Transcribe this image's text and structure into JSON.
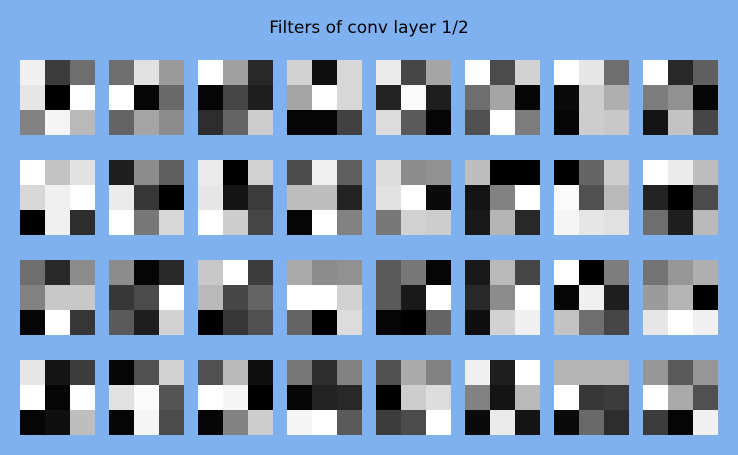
{
  "title": "Filters of conv layer 1/2",
  "background_color": "#7fb0f0",
  "grid": {
    "rows": 4,
    "columns": 8,
    "kernel_size": 3
  },
  "value_scale": "0 = black, 255 = white (grayscale intensity)",
  "filters": [
    [
      [
        240,
        60,
        110
      ],
      [
        230,
        0,
        255
      ],
      [
        130,
        245,
        185
      ]
    ],
    [
      [
        110,
        225,
        155
      ],
      [
        255,
        5,
        105
      ],
      [
        100,
        165,
        140
      ]
    ],
    [
      [
        255,
        160,
        40
      ],
      [
        5,
        70,
        30
      ],
      [
        45,
        100,
        205
      ]
    ],
    [
      [
        210,
        15,
        215
      ],
      [
        165,
        255,
        215
      ],
      [
        5,
        5,
        65
      ]
    ],
    [
      [
        235,
        70,
        165
      ],
      [
        35,
        250,
        30
      ],
      [
        220,
        90,
        5
      ]
    ],
    [
      [
        255,
        75,
        210
      ],
      [
        110,
        165,
        5
      ],
      [
        80,
        255,
        125
      ]
    ],
    [
      [
        255,
        230,
        110
      ],
      [
        10,
        205,
        175
      ],
      [
        5,
        205,
        200
      ]
    ],
    [
      [
        255,
        40,
        95
      ],
      [
        125,
        145,
        5
      ],
      [
        20,
        195,
        70
      ]
    ],
    [
      [
        255,
        195,
        225
      ],
      [
        215,
        240,
        255
      ],
      [
        0,
        240,
        45
      ]
    ],
    [
      [
        30,
        140,
        95
      ],
      [
        235,
        55,
        0
      ],
      [
        255,
        120,
        215
      ]
    ],
    [
      [
        235,
        0,
        210
      ],
      [
        230,
        20,
        60
      ],
      [
        255,
        205,
        70
      ]
    ],
    [
      [
        75,
        240,
        95
      ],
      [
        190,
        190,
        35
      ],
      [
        5,
        255,
        130
      ]
    ],
    [
      [
        220,
        140,
        145
      ],
      [
        225,
        255,
        10
      ],
      [
        120,
        210,
        205
      ]
    ],
    [
      [
        190,
        0,
        0
      ],
      [
        20,
        130,
        255
      ],
      [
        25,
        180,
        40
      ]
    ],
    [
      [
        0,
        100,
        205
      ],
      [
        250,
        80,
        185
      ],
      [
        245,
        230,
        225
      ]
    ],
    [
      [
        255,
        235,
        190
      ],
      [
        35,
        0,
        75
      ],
      [
        110,
        30,
        185
      ]
    ],
    [
      [
        110,
        40,
        140
      ],
      [
        130,
        200,
        200
      ],
      [
        5,
        255,
        55
      ]
    ],
    [
      [
        140,
        5,
        40
      ],
      [
        55,
        75,
        255
      ],
      [
        90,
        30,
        210
      ]
    ],
    [
      [
        200,
        255,
        60
      ],
      [
        185,
        70,
        100
      ],
      [
        0,
        55,
        80
      ]
    ],
    [
      [
        170,
        140,
        145
      ],
      [
        255,
        255,
        210
      ],
      [
        100,
        0,
        220
      ]
    ],
    [
      [
        90,
        120,
        5
      ],
      [
        90,
        25,
        255
      ],
      [
        5,
        0,
        100
      ]
    ],
    [
      [
        25,
        185,
        70
      ],
      [
        40,
        140,
        255
      ],
      [
        15,
        210,
        240
      ]
    ],
    [
      [
        255,
        0,
        125
      ],
      [
        5,
        240,
        30
      ],
      [
        195,
        110,
        70
      ]
    ],
    [
      [
        115,
        150,
        175
      ],
      [
        155,
        180,
        0
      ],
      [
        230,
        255,
        240
      ]
    ],
    [
      [
        230,
        20,
        60
      ],
      [
        255,
        5,
        255
      ],
      [
        5,
        15,
        190
      ]
    ],
    [
      [
        5,
        80,
        210
      ],
      [
        225,
        250,
        85
      ],
      [
        5,
        245,
        75
      ]
    ],
    [
      [
        80,
        185,
        15
      ],
      [
        255,
        245,
        0
      ],
      [
        5,
        130,
        205
      ]
    ],
    [
      [
        120,
        45,
        130
      ],
      [
        5,
        35,
        40
      ],
      [
        245,
        255,
        90
      ]
    ],
    [
      [
        80,
        170,
        130
      ],
      [
        0,
        205,
        220
      ],
      [
        60,
        75,
        255
      ]
    ],
    [
      [
        240,
        30,
        255
      ],
      [
        130,
        20,
        185
      ],
      [
        10,
        235,
        20
      ]
    ],
    [
      [
        180,
        180,
        180
      ],
      [
        255,
        55,
        60
      ],
      [
        10,
        105,
        45
      ]
    ],
    [
      [
        150,
        90,
        150
      ],
      [
        255,
        170,
        80
      ],
      [
        60,
        5,
        240
      ]
    ]
  ]
}
